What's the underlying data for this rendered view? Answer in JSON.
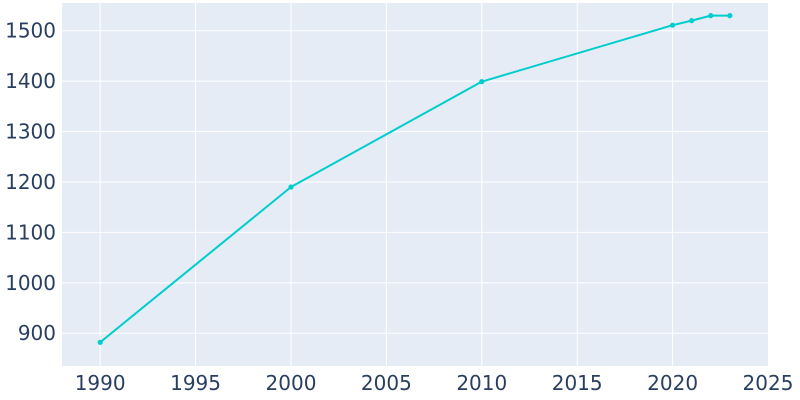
{
  "chart_data": {
    "type": "line",
    "title": "",
    "xlabel": "",
    "ylabel": "",
    "x": [
      1990,
      2000,
      2010,
      2020,
      2021,
      2022,
      2023
    ],
    "series": [
      {
        "values": [
          882,
          1190,
          1399,
          1511,
          1520,
          1530,
          1530
        ]
      }
    ],
    "xlim": [
      1988,
      2025
    ],
    "ylim": [
      835,
      1555
    ],
    "xticks": [
      1990,
      1995,
      2000,
      2005,
      2010,
      2015,
      2020,
      2025
    ],
    "yticks": [
      900,
      1000,
      1100,
      1200,
      1300,
      1400,
      1500
    ],
    "grid": true,
    "legend": "none",
    "colors": {
      "plot_background": "#e5ecf6",
      "grid": "#ffffff",
      "line": "#00cdcd",
      "tick_text": "#2a3f5f"
    }
  }
}
